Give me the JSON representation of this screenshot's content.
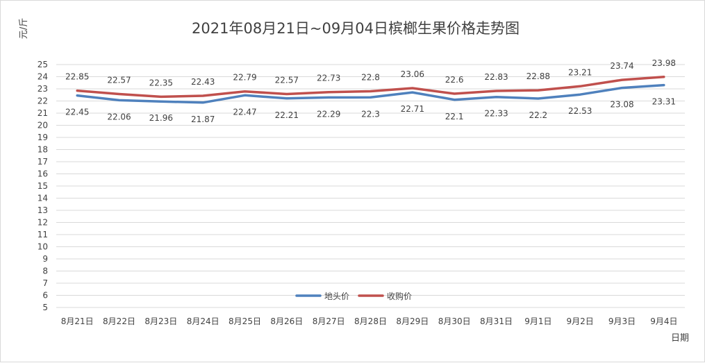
{
  "chart_data": {
    "type": "line",
    "title": "2021年08月21日~09月04日槟榔生果价格走势图",
    "xlabel": "日期",
    "ylabel": "元/斤",
    "ylim": [
      5,
      25
    ],
    "yticks": [
      5,
      6,
      7,
      8,
      9,
      10,
      11,
      12,
      13,
      14,
      15,
      16,
      17,
      18,
      19,
      20,
      21,
      22,
      23,
      24,
      25
    ],
    "grid": true,
    "legend_position": "bottom-center",
    "categories": [
      "8月21日",
      "8月22日",
      "8月23日",
      "8月24日",
      "8月25日",
      "8月26日",
      "8月27日",
      "8月28日",
      "8月29日",
      "8月30日",
      "8月31日",
      "9月1日",
      "9月2日",
      "9月3日",
      "9月4日"
    ],
    "series": [
      {
        "name": "地头价",
        "color": "#4f81bd",
        "values": [
          22.45,
          22.06,
          21.96,
          21.87,
          22.47,
          22.21,
          22.29,
          22.3,
          22.71,
          22.1,
          22.33,
          22.2,
          22.53,
          23.08,
          23.31
        ],
        "labels": [
          "22.45",
          "22.06",
          "21.96",
          "21.87",
          "22.47",
          "22.21",
          "22.29",
          "22.3",
          "22.71",
          "22.1",
          "22.33",
          "22.2",
          "22.53",
          "23.08",
          "23.31"
        ],
        "label_position": "below"
      },
      {
        "name": "收购价",
        "color": "#c0504d",
        "values": [
          22.85,
          22.57,
          22.35,
          22.43,
          22.79,
          22.57,
          22.73,
          22.8,
          23.06,
          22.6,
          22.83,
          22.88,
          23.21,
          23.74,
          23.98
        ],
        "labels": [
          "22.85",
          "22.57",
          "22.35",
          "22.43",
          "22.79",
          "22.57",
          "22.73",
          "22.8",
          "23.06",
          "22.6",
          "22.83",
          "22.88",
          "23.21",
          "23.74",
          "23.98"
        ],
        "label_position": "above"
      }
    ]
  }
}
